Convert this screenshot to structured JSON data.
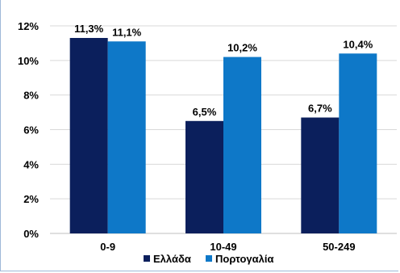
{
  "chart_data": {
    "type": "bar",
    "categories": [
      "0-9",
      "10-49",
      "50-249"
    ],
    "series": [
      {
        "name": "Ελλάδα",
        "values": [
          11.3,
          6.5,
          6.7
        ],
        "labels": [
          "11,3%",
          "6,5%",
          "6,7%"
        ],
        "color": "#0b1f5c"
      },
      {
        "name": "Πορτογαλία",
        "values": [
          11.1,
          10.2,
          10.4
        ],
        "labels": [
          "11,1%",
          "10,2%",
          "10,4%"
        ],
        "color": "#0e78c8"
      }
    ],
    "ylim": [
      0,
      12
    ],
    "yticks": [
      0,
      2,
      4,
      6,
      8,
      10,
      12
    ],
    "ytick_labels": [
      "0%",
      "2%",
      "4%",
      "6%",
      "8%",
      "10%",
      "12%"
    ],
    "grid": true,
    "legend": "bottom-center",
    "gridline_color": "#d9d9d9"
  }
}
